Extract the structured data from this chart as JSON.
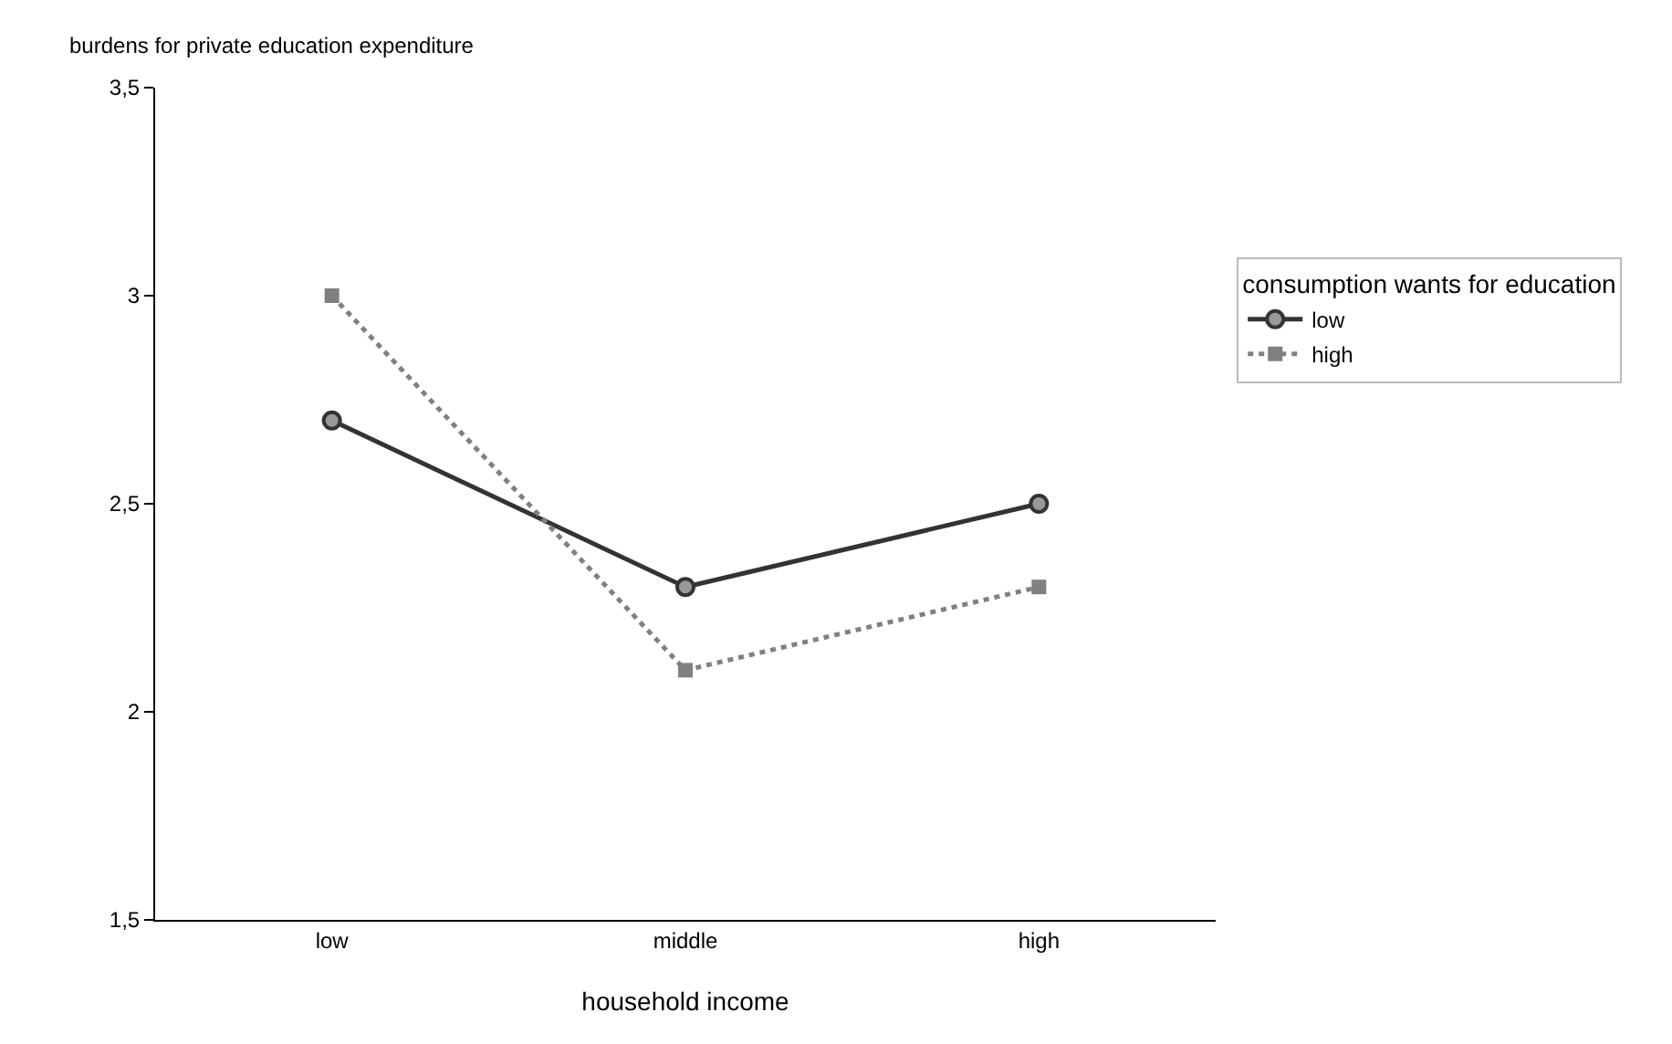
{
  "chart_data": {
    "type": "line",
    "xlabel": "household income",
    "ylabel": "burdens for private education expenditure",
    "legend_title": "consumption wants for education",
    "categories": [
      "low",
      "middle",
      "high"
    ],
    "series": [
      {
        "name": "low",
        "color": "#333333",
        "marker": "circle",
        "line_style": "solid",
        "values": [
          2.7,
          2.3,
          2.5
        ]
      },
      {
        "name": "high",
        "color": "#808080",
        "marker": "square",
        "line_style": "dotted",
        "values": [
          3.0,
          2.1,
          2.3
        ]
      }
    ],
    "ylim": [
      1.5,
      3.5
    ],
    "yticks": [
      {
        "value": 1.5,
        "label": "1,5"
      },
      2,
      {
        "value": 2.5,
        "label": "2,5"
      },
      3,
      {
        "value": 3.5,
        "label": "3,5"
      }
    ],
    "grid": false,
    "legend": "right"
  }
}
